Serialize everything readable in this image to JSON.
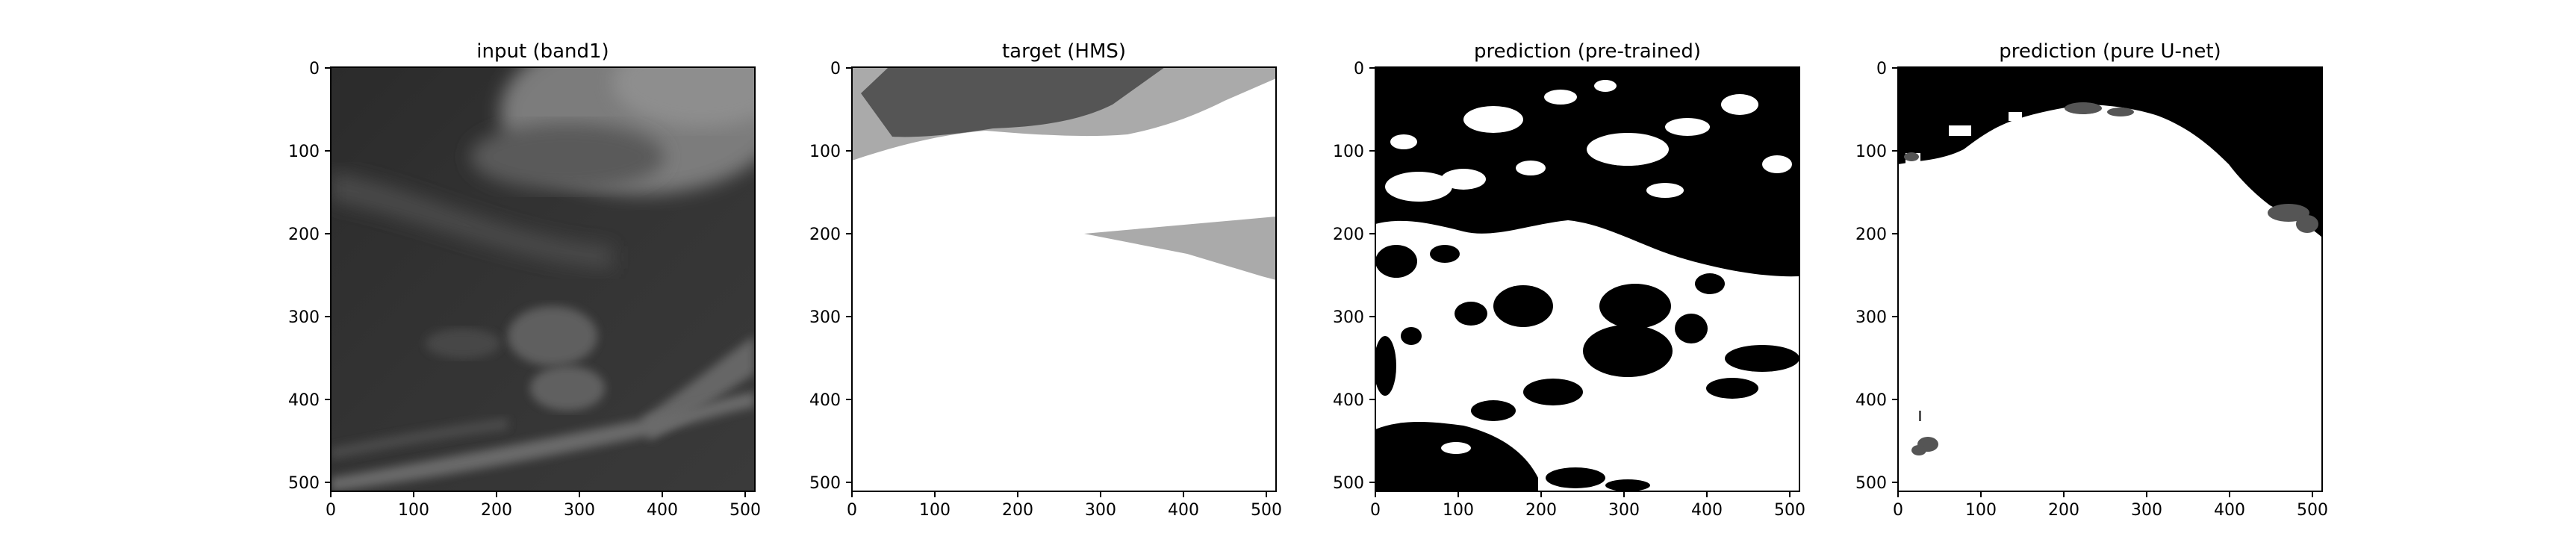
{
  "figure": {
    "panels": [
      {
        "title": "input (band1)",
        "x_ticks": [
          "0",
          "100",
          "200",
          "300",
          "400",
          "500"
        ],
        "y_ticks": [
          "0",
          "100",
          "200",
          "300",
          "400",
          "500"
        ]
      },
      {
        "title": "target (HMS)",
        "x_ticks": [
          "0",
          "100",
          "200",
          "300",
          "400",
          "500"
        ],
        "y_ticks": [
          "0",
          "100",
          "200",
          "300",
          "400",
          "500"
        ]
      },
      {
        "title": "prediction (pre-trained)",
        "x_ticks": [
          "0",
          "100",
          "200",
          "300",
          "400",
          "500"
        ],
        "y_ticks": [
          "0",
          "100",
          "200",
          "300",
          "400",
          "500"
        ]
      },
      {
        "title": "prediction (pure U-net)",
        "x_ticks": [
          "0",
          "100",
          "200",
          "300",
          "400",
          "500"
        ],
        "y_ticks": [
          "0",
          "100",
          "200",
          "300",
          "400",
          "500"
        ]
      }
    ],
    "colors": {
      "background": "#ffffff",
      "satellite_dark": "#2e2e2e",
      "satellite_light": "#7a7a7a",
      "mask_black": "#000000",
      "mask_dark_gray": "#555555",
      "mask_light_gray": "#aaaaaa",
      "mask_white": "#ffffff"
    }
  }
}
